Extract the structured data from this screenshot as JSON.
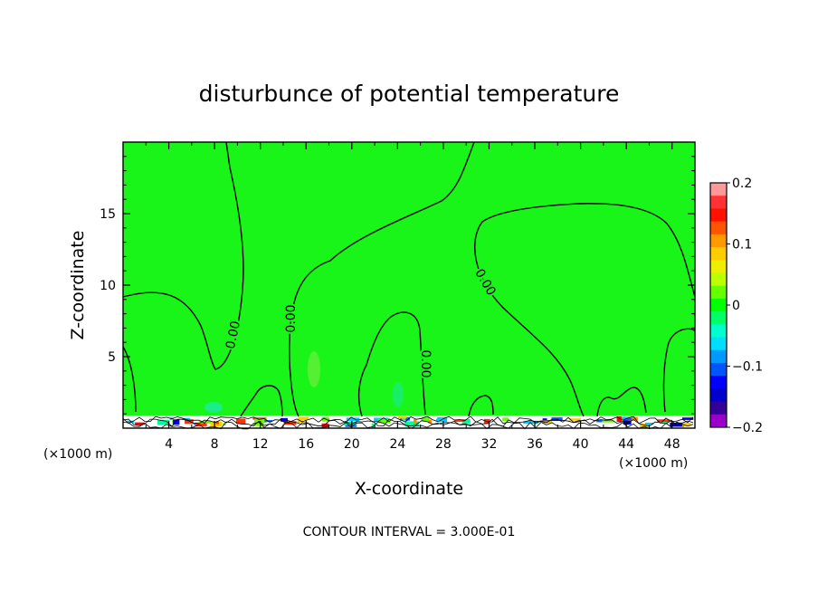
{
  "chart_data": {
    "type": "heatmap",
    "title": "disturbunce of potential temperature",
    "xlabel": "X-coordinate",
    "ylabel": "Z-coordinate",
    "x_unit": "(×1000 m)",
    "z_unit": "(×1000 m)",
    "xlim": [
      0,
      50
    ],
    "ylim": [
      0,
      20
    ],
    "x_ticks": [
      4,
      8,
      12,
      16,
      20,
      24,
      28,
      32,
      36,
      40,
      44,
      48
    ],
    "y_ticks": [
      5,
      10,
      15
    ],
    "colorbar": {
      "range": [
        -0.2,
        0.2
      ],
      "tick_values": [
        0.2,
        0.1,
        0,
        -0.1,
        -0.2
      ],
      "tick_labels": [
        "0.2",
        "0.1",
        "0",
        "-0.1",
        "-0.2"
      ],
      "colors": [
        "#ff9999",
        "#ff3333",
        "#ff1100",
        "#ff5500",
        "#ff9900",
        "#ffcc00",
        "#eeee00",
        "#bbff00",
        "#66ff00",
        "#00ff00",
        "#00ff66",
        "#00ffcc",
        "#00ddff",
        "#0099ff",
        "#0055ff",
        "#0000ff",
        "#0000cc",
        "#330099",
        "#9900cc"
      ]
    },
    "contour_level_label": "0.00",
    "contour_interval": "CONTOUR INTERVAL = 3.000E-01",
    "background_value": 0,
    "background_color": "#19f519",
    "contour_color": "#000000"
  }
}
